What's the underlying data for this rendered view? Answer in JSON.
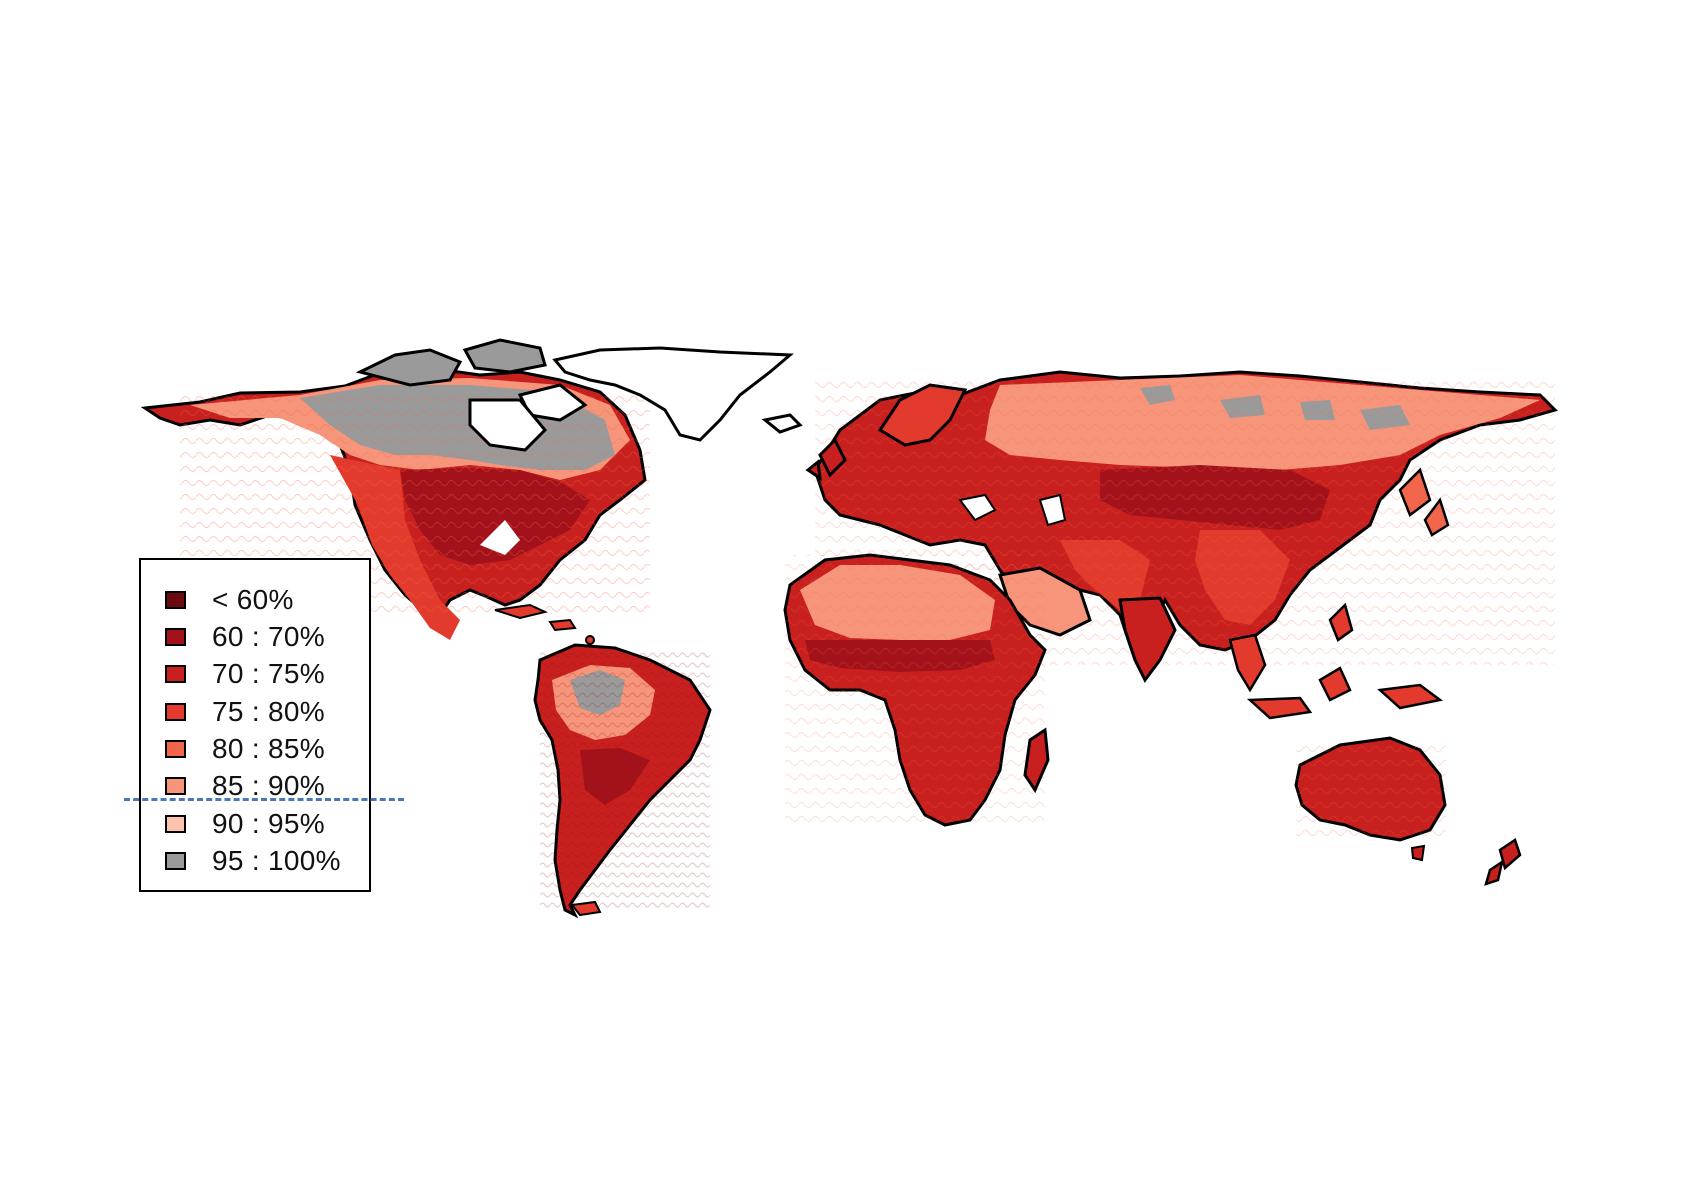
{
  "legend": {
    "items": [
      {
        "label": "< 60%",
        "color": "#6b0a0f"
      },
      {
        "label": "60 : 70%",
        "color": "#a3121a"
      },
      {
        "label": "70 : 75%",
        "color": "#c8201e"
      },
      {
        "label": "75 : 80%",
        "color": "#e23a2c"
      },
      {
        "label": "80 : 85%",
        "color": "#f1664a"
      },
      {
        "label": "85 : 90%",
        "color": "#f7957a"
      },
      {
        "label": "90 : 95%",
        "color": "#fbc3ae"
      },
      {
        "label": "95 : 100%",
        "color": "#9a9a9a"
      }
    ]
  },
  "colors": {
    "coastline": "#000000",
    "marker_line": "#4a78b4"
  }
}
